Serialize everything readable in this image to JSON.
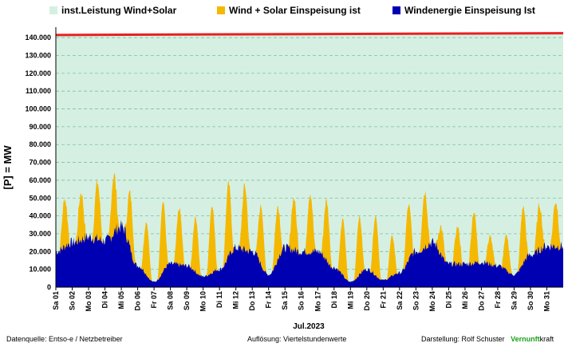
{
  "chart_data": {
    "type": "area",
    "ylabel": "[P] =  MW",
    "xlabel": "Jul.2023",
    "ylim": [
      0,
      145000
    ],
    "grid": true,
    "legend_position": "top",
    "y_ticks": [
      "0",
      "10.000",
      "20.000",
      "30.000",
      "40.000",
      "50.000",
      "60.000",
      "70.000",
      "80.000",
      "90.000",
      "100.000",
      "110.000",
      "120.000",
      "130.000",
      "140.000"
    ],
    "y_tick_values": [
      0,
      10000,
      20000,
      30000,
      40000,
      50000,
      60000,
      70000,
      80000,
      90000,
      100000,
      110000,
      120000,
      130000,
      140000
    ],
    "x_tick_labels": [
      "Sa 01",
      "So 02",
      "Mo 03",
      "Di 04",
      "Mi 05",
      "Do 06",
      "Fr 07",
      "Sa 08",
      "So 09",
      "Mo 10",
      "Di 11",
      "Mi 12",
      "Do 13",
      "Fr 14",
      "Sa 15",
      "So 16",
      "Mo 17",
      "Di 18",
      "Mi 19",
      "Do 20",
      "Fr 21",
      "Sa 22",
      "So 23",
      "Mo 24",
      "Di 25",
      "Mi 26",
      "Do 27",
      "Fr 28",
      "Sa 29",
      "So 30",
      "Mo 31"
    ],
    "installed_capacity": {
      "start": 141500,
      "end": 142500
    },
    "series": [
      {
        "name": "inst.Leistung Wind+Solar",
        "color": "#d5f0e3"
      },
      {
        "name": "Wind + Solar Einspeisung ist",
        "color": "#f5b800",
        "daily_peak": [
          44000,
          48000,
          56000,
          55000,
          60000,
          40000,
          42000,
          43000,
          41000,
          43000,
          50000,
          55000,
          50000,
          36000,
          48000,
          50000,
          51000,
          41000,
          35000,
          42000,
          26000,
          38000,
          48000,
          37000,
          32000,
          40000,
          28000,
          30000,
          38000,
          41000,
          45000
        ]
      },
      {
        "name": "Windenergie Einspeisung Ist",
        "color": "#0000b3",
        "daily_level": [
          20000,
          25000,
          28000,
          26000,
          34000,
          12000,
          3000,
          13000,
          12000,
          6000,
          10000,
          22000,
          20000,
          7000,
          22000,
          20000,
          20000,
          11000,
          3000,
          10000,
          4000,
          8000,
          20000,
          25000,
          13000,
          13000,
          14000,
          12000,
          7000,
          18000,
          23000
        ]
      }
    ],
    "capacity_line_color": "#e82020"
  },
  "footer": {
    "source": "Datenquelle:  Entso-e  / Netzbetreiber",
    "resolution": "Auflösung: Viertelstundenwerte",
    "author": "Darstellung:  Rolf Schuster",
    "brand_a": "Vernunft",
    "brand_b": "kraft"
  }
}
